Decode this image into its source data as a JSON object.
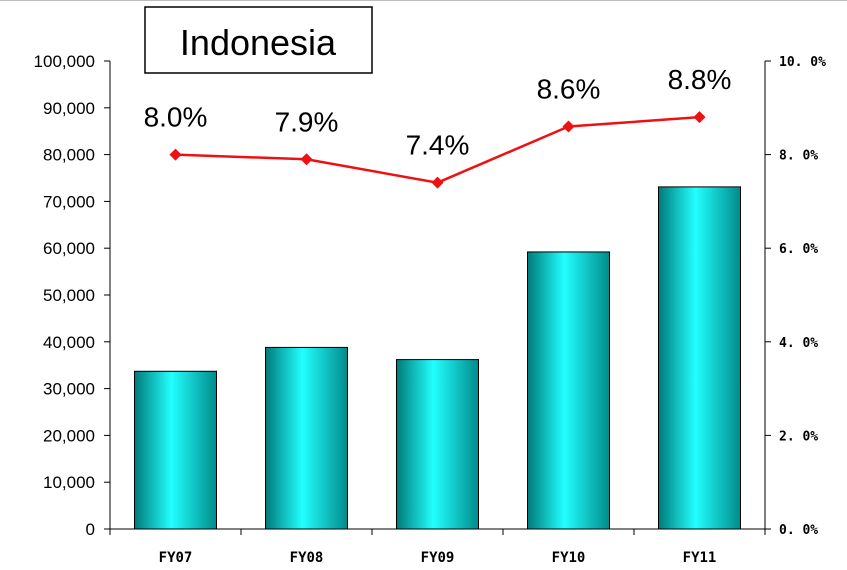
{
  "chart_data": {
    "type": "bar+line",
    "title": "Indonesia",
    "categories": [
      "FY07",
      "FY08",
      "FY09",
      "FY10",
      "FY11"
    ],
    "series": [
      {
        "type": "bar",
        "axis": "left",
        "values": [
          33700,
          38800,
          36200,
          59200,
          73100
        ],
        "color": "#1fc8c8"
      },
      {
        "type": "line",
        "axis": "right",
        "values": [
          8.0,
          7.9,
          7.4,
          8.6,
          8.8
        ],
        "labels": [
          "8.0%",
          "7.9%",
          "7.4%",
          "8.6%",
          "8.8%"
        ],
        "color": "#ee1111"
      }
    ],
    "left_axis": {
      "ylim": [
        0,
        100000
      ],
      "ticks": [
        "0",
        "10,000",
        "20,000",
        "30,000",
        "40,000",
        "50,000",
        "60,000",
        "70,000",
        "80,000",
        "90,000",
        "100,000"
      ]
    },
    "right_axis": {
      "ylim": [
        0,
        10
      ],
      "ticks": [
        "0. 0%",
        "2. 0%",
        "4. 0%",
        "6. 0%",
        "8. 0%",
        "10. 0%"
      ]
    },
    "grid": false,
    "legend": "none"
  }
}
